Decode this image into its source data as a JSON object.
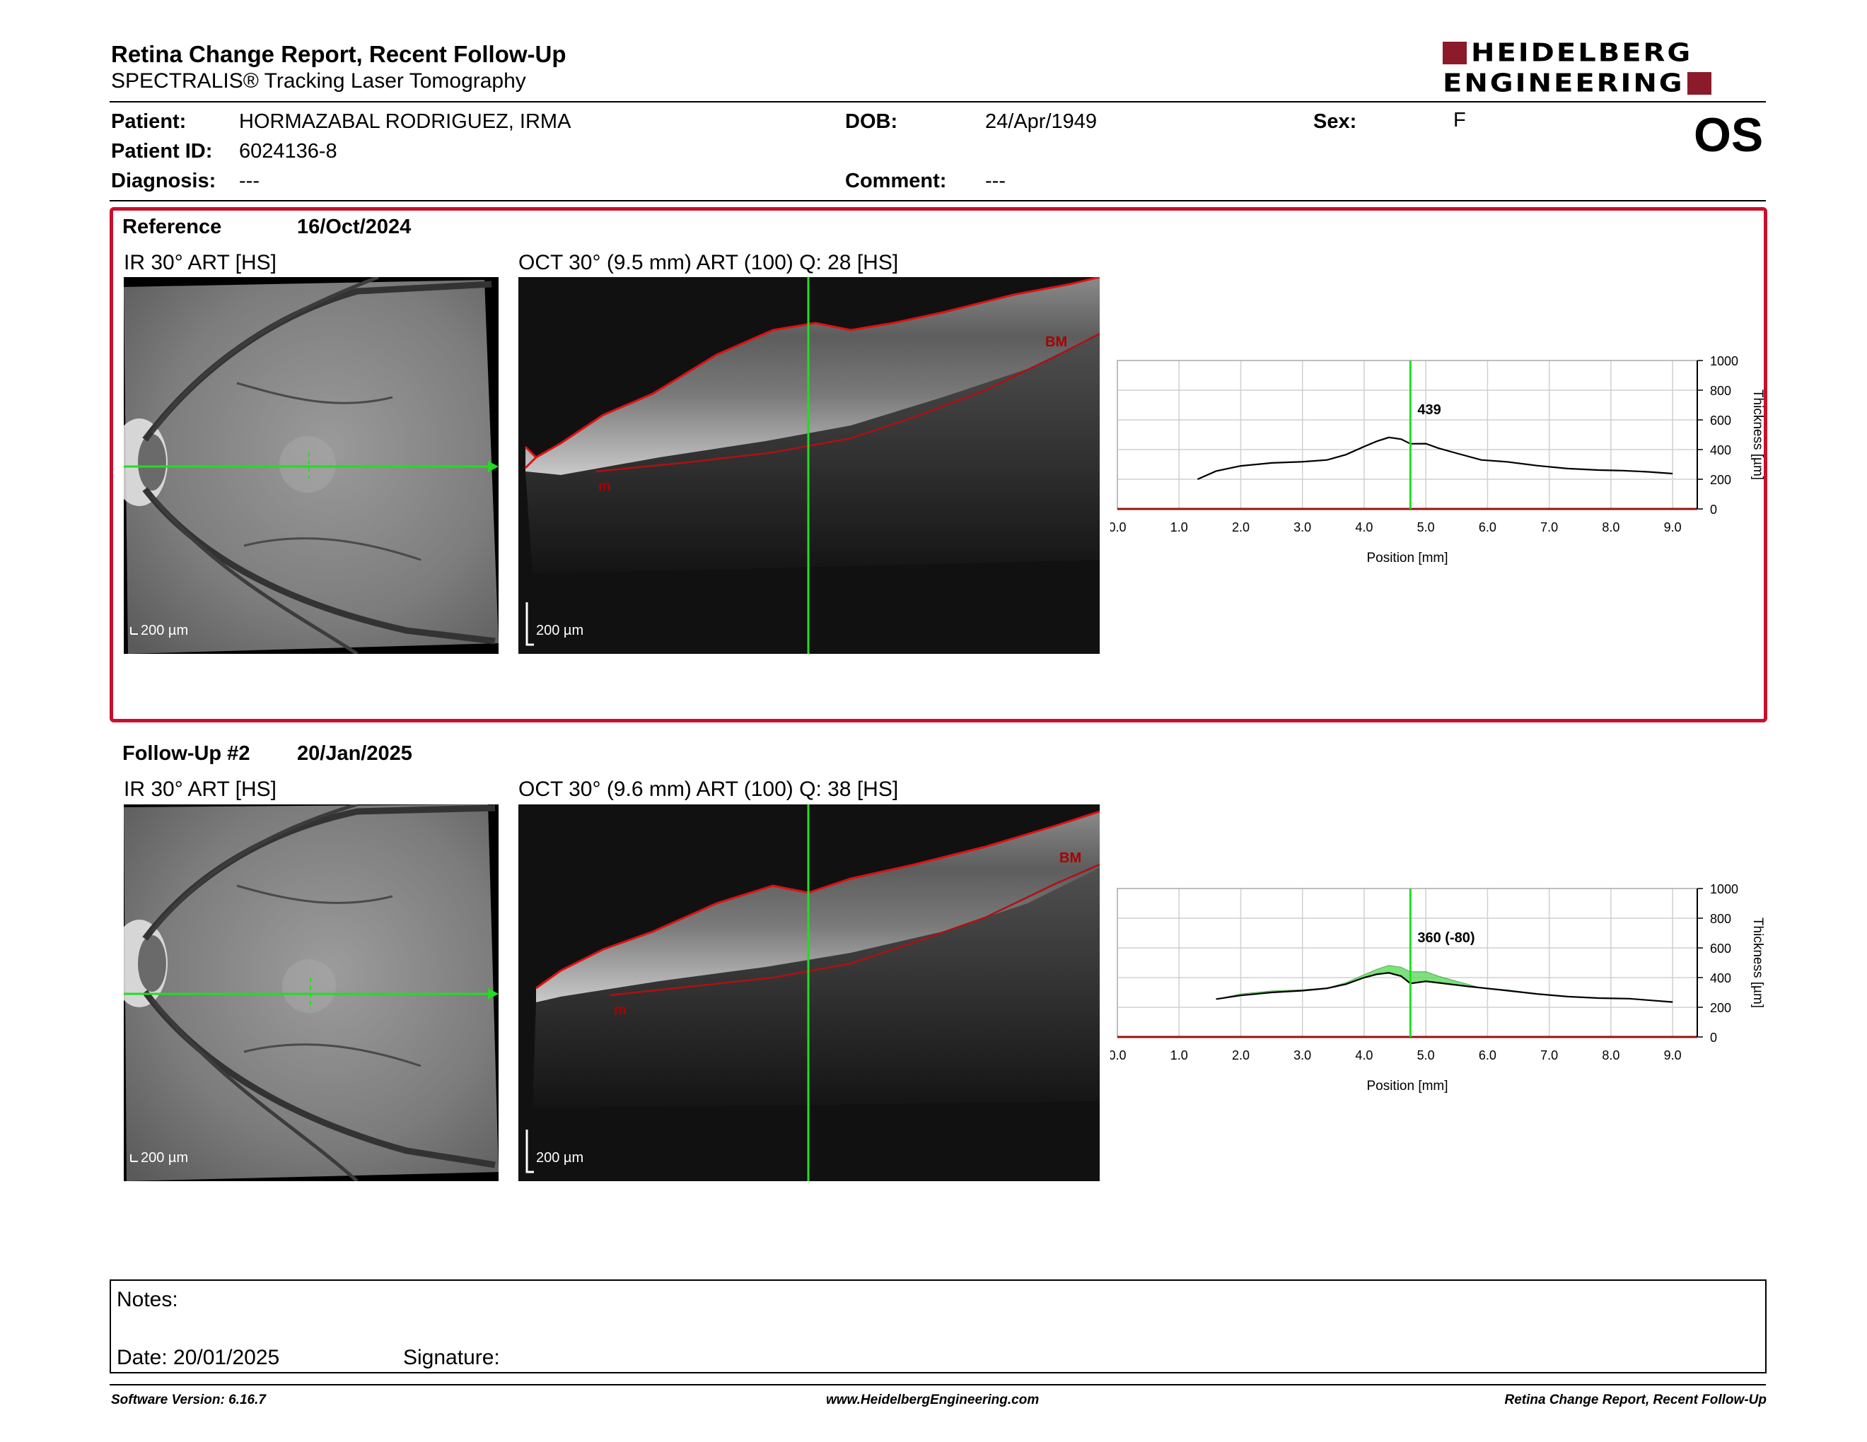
{
  "header": {
    "title": "Retina Change Report, Recent Follow-Up",
    "subtitle": "SPECTRALIS® Tracking Laser Tomography",
    "logo_line1": "HEIDELBERG",
    "logo_line2": "ENGINEERING",
    "eye": "OS"
  },
  "patient": {
    "name_label": "Patient:",
    "name": "HORMAZABAL RODRIGUEZ, IRMA",
    "id_label": "Patient ID:",
    "id": "6024136-8",
    "diagnosis_label": "Diagnosis:",
    "diagnosis": "---",
    "dob_label": "DOB:",
    "dob": "24/Apr/1949",
    "comment_label": "Comment:",
    "comment": "---",
    "sex_label": "Sex:",
    "sex": "F"
  },
  "reference": {
    "label": "Reference",
    "date": "16/Oct/2024",
    "ir_caption": "IR 30° ART [HS]",
    "oct_caption": "OCT 30° (9.5 mm) ART (100) Q: 28 [HS]",
    "scale": "200 µm",
    "bm_label": "BM",
    "m_label": "m"
  },
  "followup": {
    "label": "Follow-Up #2",
    "date": "20/Jan/2025",
    "ir_caption": "IR 30° ART [HS]",
    "oct_caption": "OCT 30° (9.6 mm) ART (100) Q: 38 [HS]",
    "scale": "200 µm",
    "bm_label": "BM",
    "m_label": "m"
  },
  "chart_data": [
    {
      "type": "line",
      "xlabel": "Position [mm]",
      "ylabel": "Thickness [µm]",
      "xlim": [
        0,
        9.4
      ],
      "ylim": [
        0,
        1000
      ],
      "x_ticks": [
        "0.0",
        "1.0",
        "2.0",
        "3.0",
        "4.0",
        "5.0",
        "6.0",
        "7.0",
        "8.0",
        "9.0"
      ],
      "y_ticks": [
        "0",
        "200",
        "400",
        "600",
        "800",
        "1000"
      ],
      "grid": true,
      "cursor_x": 4.75,
      "cursor_label": "439",
      "series": [
        {
          "values": [
            [
              1.3,
              200
            ],
            [
              1.6,
              255
            ],
            [
              2.0,
              290
            ],
            [
              2.5,
              310
            ],
            [
              3.0,
              318
            ],
            [
              3.4,
              330
            ],
            [
              3.7,
              365
            ],
            [
              4.0,
              420
            ],
            [
              4.2,
              455
            ],
            [
              4.4,
              482
            ],
            [
              4.6,
              470
            ],
            [
              4.75,
              439
            ],
            [
              5.0,
              440
            ],
            [
              5.2,
              410
            ],
            [
              5.5,
              375
            ],
            [
              5.9,
              330
            ],
            [
              6.3,
              318
            ],
            [
              6.8,
              292
            ],
            [
              7.3,
              272
            ],
            [
              7.8,
              262
            ],
            [
              8.2,
              258
            ],
            [
              8.6,
              250
            ],
            [
              9.0,
              238
            ]
          ]
        }
      ]
    },
    {
      "type": "area",
      "xlabel": "Position [mm]",
      "ylabel": "Thickness [µm]",
      "xlim": [
        0,
        9.4
      ],
      "ylim": [
        0,
        1000
      ],
      "x_ticks": [
        "0.0",
        "1.0",
        "2.0",
        "3.0",
        "4.0",
        "5.0",
        "6.0",
        "7.0",
        "8.0",
        "9.0"
      ],
      "y_ticks": [
        "0",
        "200",
        "400",
        "600",
        "800",
        "1000"
      ],
      "grid": true,
      "cursor_x": 4.75,
      "cursor_label": "360 (-80)",
      "series": [
        {
          "values": [
            [
              1.6,
              255
            ],
            [
              2.0,
              280
            ],
            [
              2.5,
              300
            ],
            [
              3.0,
              312
            ],
            [
              3.4,
              328
            ],
            [
              3.7,
              355
            ],
            [
              4.0,
              400
            ],
            [
              4.2,
              422
            ],
            [
              4.4,
              432
            ],
            [
              4.6,
              410
            ],
            [
              4.75,
              360
            ],
            [
              5.0,
              375
            ],
            [
              5.3,
              360
            ],
            [
              5.7,
              340
            ],
            [
              6.2,
              318
            ],
            [
              6.8,
              290
            ],
            [
              7.3,
              272
            ],
            [
              7.8,
              262
            ],
            [
              8.3,
              258
            ],
            [
              8.7,
              245
            ],
            [
              9.0,
              235
            ]
          ]
        },
        {
          "values": [
            [
              1.6,
              255
            ],
            [
              2.0,
              290
            ],
            [
              2.5,
              310
            ],
            [
              3.0,
              318
            ],
            [
              3.4,
              330
            ],
            [
              3.7,
              365
            ],
            [
              4.0,
              420
            ],
            [
              4.2,
              455
            ],
            [
              4.4,
              482
            ],
            [
              4.6,
              470
            ],
            [
              4.75,
              439
            ],
            [
              5.0,
              440
            ],
            [
              5.2,
              410
            ],
            [
              5.5,
              375
            ],
            [
              5.9,
              330
            ],
            [
              6.3,
              318
            ],
            [
              6.8,
              292
            ],
            [
              7.3,
              272
            ],
            [
              7.8,
              262
            ],
            [
              8.2,
              258
            ],
            [
              8.6,
              250
            ],
            [
              9.0,
              238
            ]
          ]
        }
      ]
    }
  ],
  "notes": {
    "notes_label": "Notes:",
    "date_label": "Date: 20/01/2025",
    "signature_label": "Signature:"
  },
  "footer": {
    "left": "Software Version: 6.16.7",
    "center": "www.HeidelbergEngineering.com",
    "right": "Retina Change Report, Recent Follow-Up"
  },
  "colors": {
    "frame_red": "#c8102e",
    "logo_red": "#8b1a2b",
    "scan_green": "#22dd22",
    "difference_fill": "#66dd66"
  }
}
